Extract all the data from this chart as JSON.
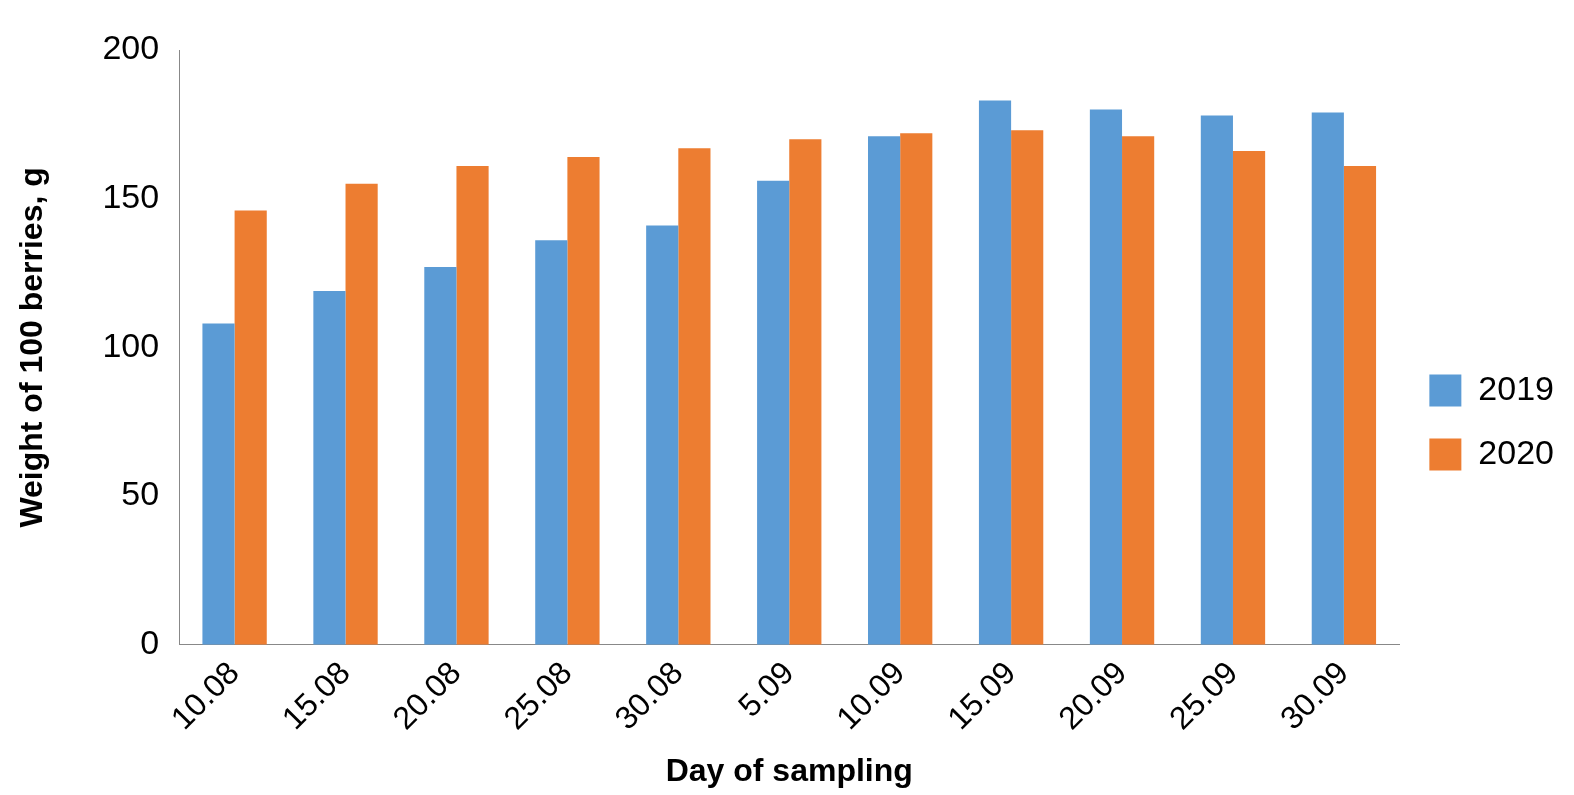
{
  "chart_data": {
    "type": "bar",
    "xlabel": "Day of sampling",
    "ylabel": "Weight of 100 berries, g",
    "categories": [
      "10.08",
      "15.08",
      "20.08",
      "25.08",
      "30.08",
      "5.09",
      "10.09",
      "15.09",
      "20.09",
      "25.09",
      "30.09"
    ],
    "series": [
      {
        "name": "2019",
        "color": "#5b9bd5",
        "values": [
          108,
          119,
          127,
          136,
          141,
          156,
          171,
          183,
          180,
          178,
          179
        ]
      },
      {
        "name": "2020",
        "color": "#ed7d31",
        "values": [
          146,
          155,
          161,
          164,
          167,
          170,
          172,
          173,
          171,
          166,
          161
        ]
      }
    ],
    "ylim": [
      0,
      200
    ],
    "yticks": [
      0,
      50,
      100,
      150,
      200
    ],
    "grid": false,
    "legend": "right"
  }
}
